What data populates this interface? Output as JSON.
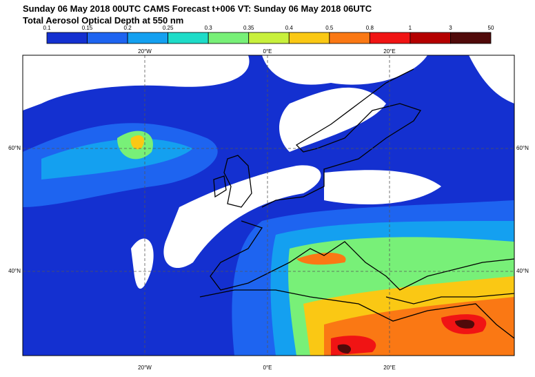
{
  "title": {
    "line1": "Sunday 06 May 2018 00UTC CAMS Forecast t+006 VT: Sunday 06 May 2018 06UTC",
    "line2": "Total Aerosol Optical Depth at 550 nm"
  },
  "colorbar": {
    "labels": [
      "0.1",
      "0.15",
      "0.2",
      "0.25",
      "0.3",
      "0.35",
      "0.4",
      "0.5",
      "0.8",
      "1",
      "3",
      "50"
    ],
    "colors": [
      "#1430d0",
      "#1e64f0",
      "#14a0f0",
      "#1edcc8",
      "#78f078",
      "#c8f03c",
      "#fac814",
      "#fa7814",
      "#f01414",
      "#b40000",
      "#500a0a"
    ]
  },
  "map": {
    "lon_labels": [
      "20°W",
      "0°E",
      "20°E"
    ],
    "lat_labels": [
      "60°N",
      "40°N"
    ]
  }
}
